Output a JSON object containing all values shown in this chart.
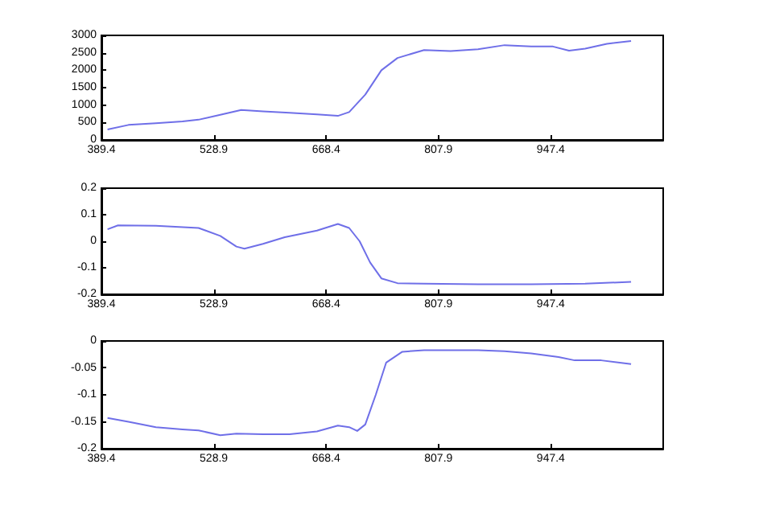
{
  "chart_data": [
    {
      "type": "line",
      "x": [
        397,
        423,
        457,
        490,
        510,
        537,
        563,
        590,
        623,
        657,
        683,
        697,
        717,
        737,
        757,
        790,
        823,
        857,
        890,
        923,
        950,
        970,
        990,
        1017,
        1047
      ],
      "series": [
        {
          "color": "#6f6fe8",
          "values": [
            300,
            430,
            480,
            530,
            580,
            720,
            860,
            820,
            780,
            730,
            690,
            800,
            1300,
            2000,
            2350,
            2580,
            2550,
            2600,
            2720,
            2680,
            2680,
            2560,
            2620,
            2760,
            2840
          ]
        }
      ],
      "xlim": [
        389.4,
        1086.9
      ],
      "xticks": [
        389.4,
        528.9,
        668.4,
        807.9,
        947.4
      ],
      "ylim": [
        0,
        3000
      ],
      "yticks": [
        0,
        500,
        1000,
        1500,
        2000,
        2500,
        3000
      ],
      "grid": false
    },
    {
      "type": "line",
      "x": [
        397,
        410,
        457,
        510,
        537,
        557,
        567,
        590,
        617,
        657,
        683,
        697,
        710,
        723,
        737,
        757,
        790,
        857,
        923,
        990,
        1047
      ],
      "series": [
        {
          "color": "#6f6fe8",
          "values": [
            0.045,
            0.06,
            0.058,
            0.05,
            0.02,
            -0.02,
            -0.028,
            -0.01,
            0.015,
            0.04,
            0.065,
            0.05,
            0,
            -0.08,
            -0.14,
            -0.158,
            -0.16,
            -0.162,
            -0.162,
            -0.16,
            -0.153
          ]
        }
      ],
      "xlim": [
        389.4,
        1086.9
      ],
      "xticks": [
        389.4,
        528.9,
        668.4,
        807.9,
        947.4
      ],
      "ylim": [
        -0.2,
        0.2
      ],
      "yticks": [
        -0.2,
        -0.1,
        0,
        0.1,
        0.2
      ],
      "grid": false
    },
    {
      "type": "line",
      "x": [
        397,
        423,
        457,
        490,
        510,
        537,
        557,
        590,
        623,
        657,
        683,
        697,
        707,
        717,
        730,
        743,
        763,
        790,
        857,
        890,
        923,
        957,
        977,
        1010,
        1047
      ],
      "series": [
        {
          "color": "#6f6fe8",
          "values": [
            -0.143,
            -0.15,
            -0.16,
            -0.164,
            -0.166,
            -0.175,
            -0.172,
            -0.173,
            -0.173,
            -0.168,
            -0.157,
            -0.16,
            -0.167,
            -0.155,
            -0.1,
            -0.04,
            -0.02,
            -0.017,
            -0.017,
            -0.019,
            -0.023,
            -0.03,
            -0.036,
            -0.036,
            -0.043
          ]
        }
      ],
      "xlim": [
        389.4,
        1086.9
      ],
      "xticks": [
        389.4,
        528.9,
        668.4,
        807.9,
        947.4
      ],
      "ylim": [
        -0.2,
        0
      ],
      "yticks": [
        -0.2,
        -0.15,
        -0.1,
        -0.05,
        0
      ],
      "grid": false
    }
  ]
}
